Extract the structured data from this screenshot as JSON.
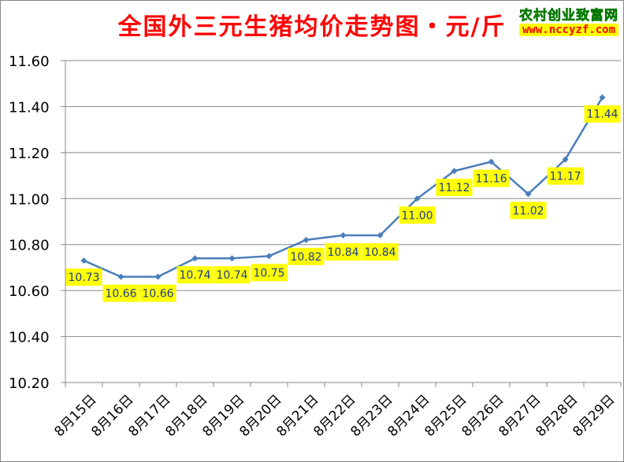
{
  "chart_data": {
    "type": "line",
    "title": "全国外三元生猪均价走势图・元/斤",
    "categories": [
      "8月15日",
      "8月16日",
      "8月17日",
      "8月18日",
      "8月19日",
      "8月20日",
      "8月21日",
      "8月22日",
      "8月23日",
      "8月24日",
      "8月25日",
      "8月26日",
      "8月27日",
      "8月28日",
      "8月29日"
    ],
    "values": [
      10.73,
      10.66,
      10.66,
      10.74,
      10.74,
      10.75,
      10.82,
      10.84,
      10.84,
      11.0,
      11.12,
      11.16,
      11.02,
      11.17,
      11.44
    ],
    "data_labels": [
      "10.73",
      "10.66",
      "10.66",
      "10.74",
      "10.74",
      "10.75",
      "10.82",
      "10.84",
      "10.84",
      "11.00",
      "11.12",
      "11.16",
      "11.02",
      "11.17",
      "11.44"
    ],
    "yticks": [
      "10.20",
      "10.40",
      "10.60",
      "10.80",
      "11.00",
      "11.20",
      "11.40",
      "11.60"
    ],
    "ylim": [
      10.2,
      11.6
    ],
    "grid": true,
    "legend": "none",
    "colors": {
      "line": "#4a7ebb",
      "label_bg": "#ffff00",
      "label_text": "#1f3a93",
      "title": "#ff0000"
    }
  },
  "watermark": {
    "name": "农村创业致富网",
    "url": "www.nccyzf.com"
  }
}
